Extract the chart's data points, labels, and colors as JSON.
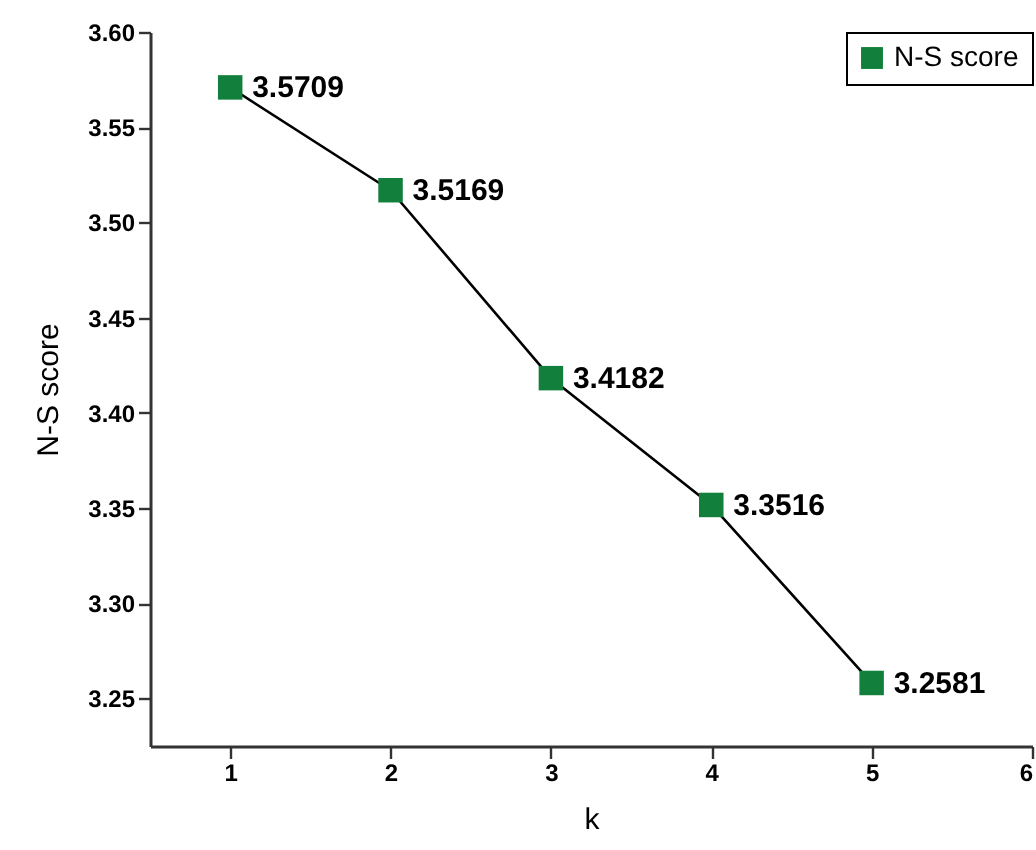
{
  "chart_data": {
    "type": "line",
    "xlabel": "k",
    "ylabel": "N-S score",
    "x": [
      1,
      2,
      3,
      4,
      5
    ],
    "series": [
      {
        "name": "N-S score",
        "color": "#12803c",
        "values": [
          3.5709,
          3.5169,
          3.4182,
          3.3516,
          3.2581
        ]
      }
    ],
    "xlim": [
      0.5,
      6
    ],
    "xticks": [
      1,
      2,
      3,
      4,
      5,
      6
    ],
    "ylim": [
      3.225,
      3.6
    ],
    "yticks": [
      {
        "value": 3.25,
        "label": "3.25"
      },
      {
        "value": 3.3,
        "label": "3.30"
      },
      {
        "value": 3.35,
        "label": "3.35"
      },
      {
        "value": 3.4,
        "label": "3.40"
      },
      {
        "value": 3.45,
        "label": "3.45"
      },
      {
        "value": 3.5,
        "label": "3.50"
      },
      {
        "value": 3.55,
        "label": "3.55"
      },
      {
        "value": 3.6,
        "label": "3.60"
      }
    ],
    "marker": "square",
    "line_style": "solid",
    "data_labels": true,
    "grid": false,
    "legend": "top right"
  }
}
